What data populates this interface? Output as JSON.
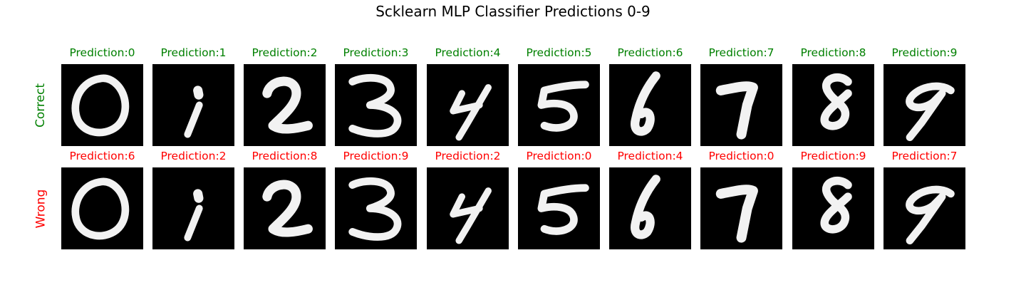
{
  "chart_data": {
    "type": "image-grid",
    "title": "Scklearn MLP Classifier Predictions 0-9",
    "colors": {
      "correct": "#008000",
      "wrong": "#ff0000",
      "background": "#000000",
      "stroke": "#f2f2f2"
    },
    "rows": [
      {
        "label": "Correct",
        "color": "correct",
        "cells": [
          {
            "title": "Prediction:0",
            "icon": "digit-0-icon"
          },
          {
            "title": "Prediction:1",
            "icon": "digit-1-icon"
          },
          {
            "title": "Prediction:2",
            "icon": "digit-2-icon"
          },
          {
            "title": "Prediction:3",
            "icon": "digit-3-icon"
          },
          {
            "title": "Prediction:4",
            "icon": "digit-4-icon"
          },
          {
            "title": "Prediction:5",
            "icon": "digit-5-icon"
          },
          {
            "title": "Prediction:6",
            "icon": "digit-6-icon"
          },
          {
            "title": "Prediction:7",
            "icon": "digit-7-icon"
          },
          {
            "title": "Prediction:8",
            "icon": "digit-8-icon"
          },
          {
            "title": "Prediction:9",
            "icon": "digit-9-icon"
          }
        ]
      },
      {
        "label": "Wrong",
        "color": "wrong",
        "cells": [
          {
            "title": "Prediction:6",
            "icon": "digit-0-icon"
          },
          {
            "title": "Prediction:2",
            "icon": "digit-1-icon"
          },
          {
            "title": "Prediction:8",
            "icon": "digit-2-icon"
          },
          {
            "title": "Prediction:9",
            "icon": "digit-3-icon"
          },
          {
            "title": "Prediction:2",
            "icon": "digit-4-icon"
          },
          {
            "title": "Prediction:0",
            "icon": "digit-5-icon"
          },
          {
            "title": "Prediction:4",
            "icon": "digit-6-icon"
          },
          {
            "title": "Prediction:0",
            "icon": "digit-7-icon"
          },
          {
            "title": "Prediction:9",
            "icon": "digit-8-icon"
          },
          {
            "title": "Prediction:7",
            "icon": "digit-9-icon"
          }
        ]
      }
    ]
  }
}
